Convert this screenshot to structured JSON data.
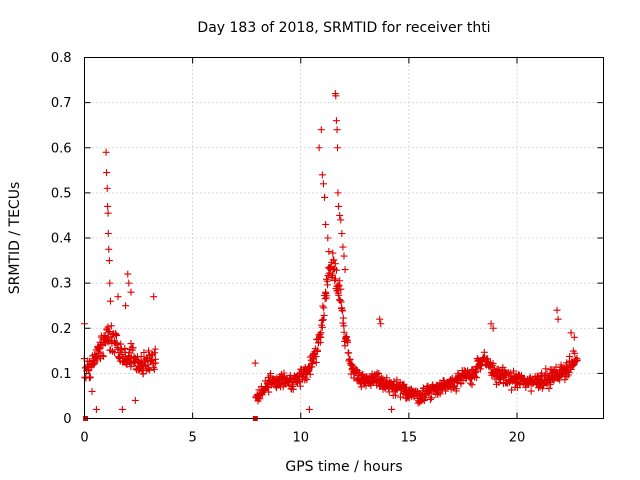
{
  "chart_data": {
    "type": "scatter",
    "title": "Day 183 of 2018, SRMTID for receiver thti",
    "xlabel": "GPS time / hours",
    "ylabel": "SRMTID / TECUs",
    "xlim": [
      0,
      24
    ],
    "ylim": [
      0,
      0.8
    ],
    "xticks": [
      "0",
      "5",
      "10",
      "15",
      "20"
    ],
    "yticks": [
      "0",
      "0.1",
      "0.2",
      "0.3",
      "0.4",
      "0.5",
      "0.6",
      "0.7",
      "0.8"
    ],
    "grid": true,
    "marker": "+",
    "series_color": "#e00000",
    "segments": [
      {
        "start": 0.0,
        "end": 3.3,
        "anchors": [
          [
            0.0,
            0.1
          ],
          [
            0.3,
            0.12
          ],
          [
            0.6,
            0.14
          ],
          [
            0.9,
            0.17
          ],
          [
            1.1,
            0.19
          ],
          [
            1.5,
            0.16
          ],
          [
            1.8,
            0.13
          ],
          [
            2.2,
            0.14
          ],
          [
            2.6,
            0.12
          ],
          [
            3.0,
            0.12
          ],
          [
            3.3,
            0.13
          ]
        ],
        "spread": 0.045
      },
      {
        "start": 7.9,
        "end": 22.8,
        "anchors": [
          [
            7.9,
            0.04
          ],
          [
            8.2,
            0.06
          ],
          [
            8.6,
            0.08
          ],
          [
            9.0,
            0.09
          ],
          [
            9.5,
            0.08
          ],
          [
            10.0,
            0.09
          ],
          [
            10.5,
            0.12
          ],
          [
            10.9,
            0.18
          ],
          [
            11.2,
            0.3
          ],
          [
            11.5,
            0.35
          ],
          [
            11.8,
            0.28
          ],
          [
            12.0,
            0.2
          ],
          [
            12.3,
            0.12
          ],
          [
            12.8,
            0.08
          ],
          [
            13.5,
            0.09
          ],
          [
            14.0,
            0.07
          ],
          [
            15.0,
            0.06
          ],
          [
            15.5,
            0.05
          ],
          [
            16.0,
            0.06
          ],
          [
            17.0,
            0.08
          ],
          [
            18.0,
            0.1
          ],
          [
            18.5,
            0.13
          ],
          [
            19.0,
            0.1
          ],
          [
            19.5,
            0.09
          ],
          [
            20.5,
            0.08
          ],
          [
            21.5,
            0.09
          ],
          [
            22.0,
            0.1
          ],
          [
            22.5,
            0.12
          ],
          [
            22.8,
            0.13
          ]
        ],
        "spread": 0.035
      }
    ],
    "outliers": [
      [
        0.0,
        0.21
      ],
      [
        0.35,
        0.06
      ],
      [
        0.55,
        0.02
      ],
      [
        1.0,
        0.59
      ],
      [
        1.02,
        0.545
      ],
      [
        1.05,
        0.51
      ],
      [
        1.07,
        0.47
      ],
      [
        1.09,
        0.455
      ],
      [
        1.1,
        0.41
      ],
      [
        1.12,
        0.375
      ],
      [
        1.15,
        0.35
      ],
      [
        1.17,
        0.3
      ],
      [
        1.2,
        0.26
      ],
      [
        1.55,
        0.27
      ],
      [
        1.9,
        0.25
      ],
      [
        2.0,
        0.32
      ],
      [
        2.05,
        0.3
      ],
      [
        2.15,
        0.28
      ],
      [
        1.75,
        0.02
      ],
      [
        2.35,
        0.04
      ],
      [
        3.2,
        0.27
      ],
      [
        10.85,
        0.6
      ],
      [
        10.95,
        0.64
      ],
      [
        11.0,
        0.54
      ],
      [
        11.05,
        0.52
      ],
      [
        11.1,
        0.49
      ],
      [
        11.15,
        0.43
      ],
      [
        11.25,
        0.4
      ],
      [
        11.3,
        0.37
      ],
      [
        11.6,
        0.72
      ],
      [
        11.62,
        0.715
      ],
      [
        11.65,
        0.66
      ],
      [
        11.68,
        0.64
      ],
      [
        11.7,
        0.6
      ],
      [
        11.72,
        0.5
      ],
      [
        11.75,
        0.47
      ],
      [
        11.8,
        0.45
      ],
      [
        11.85,
        0.44
      ],
      [
        11.9,
        0.41
      ],
      [
        11.95,
        0.38
      ],
      [
        12.0,
        0.36
      ],
      [
        12.05,
        0.33
      ],
      [
        13.65,
        0.22
      ],
      [
        13.7,
        0.21
      ],
      [
        18.8,
        0.21
      ],
      [
        18.9,
        0.2
      ],
      [
        21.85,
        0.24
      ],
      [
        21.9,
        0.22
      ],
      [
        22.5,
        0.19
      ],
      [
        22.65,
        0.18
      ],
      [
        10.4,
        0.02
      ],
      [
        14.2,
        0.02
      ]
    ]
  }
}
